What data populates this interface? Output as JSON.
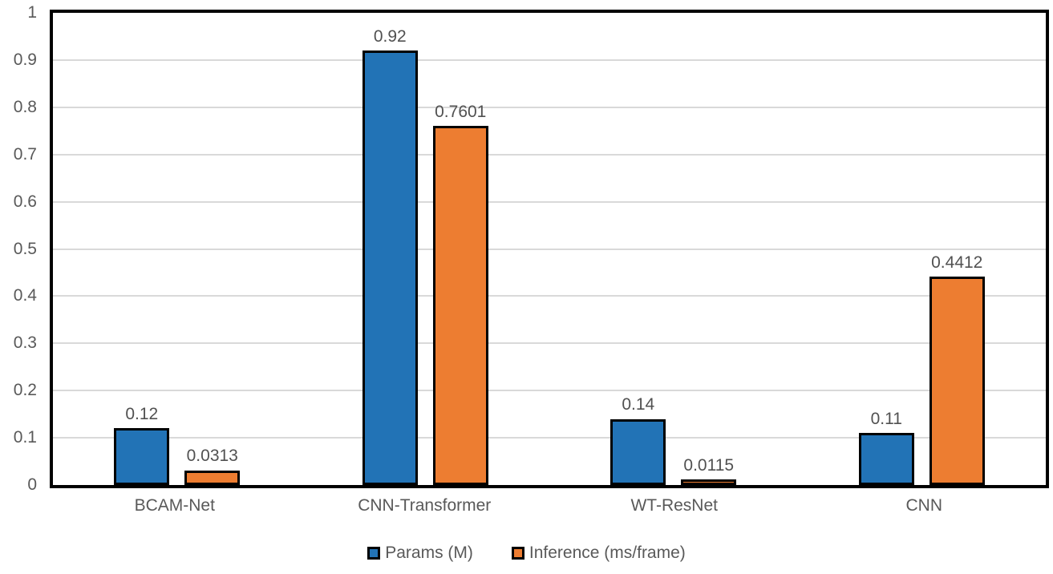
{
  "chart_data": {
    "type": "bar",
    "title": "",
    "xlabel": "",
    "ylabel": "",
    "categories": [
      "BCAM-Net",
      "CNN-Transformer",
      "WT-ResNet",
      "CNN"
    ],
    "series": [
      {
        "key": "params",
        "name": "Params (M)",
        "color": "#2273B6",
        "values": [
          0.12,
          0.92,
          0.14,
          0.11
        ]
      },
      {
        "key": "inference",
        "name": "Inference (ms/frame)",
        "color": "#ED7D31",
        "values": [
          0.0313,
          0.7601,
          0.0115,
          0.4412
        ]
      }
    ],
    "value_labels": [
      [
        "0.12",
        "0.92",
        "0.14",
        "0.11"
      ],
      [
        "0.0313",
        "0.7601",
        "0.0115",
        "0.4412"
      ]
    ],
    "ylim": [
      0,
      1
    ],
    "ytick_step": 0.1,
    "ytick_labels": [
      "0",
      "0.1",
      "0.2",
      "0.3",
      "0.4",
      "0.5",
      "0.6",
      "0.7",
      "0.8",
      "0.9",
      "1"
    ],
    "grid": true,
    "gridline_color": "#D9D9D9",
    "bar_border_color": "#000000",
    "axis_text_color": "#595959",
    "legend_position": "bottom"
  }
}
